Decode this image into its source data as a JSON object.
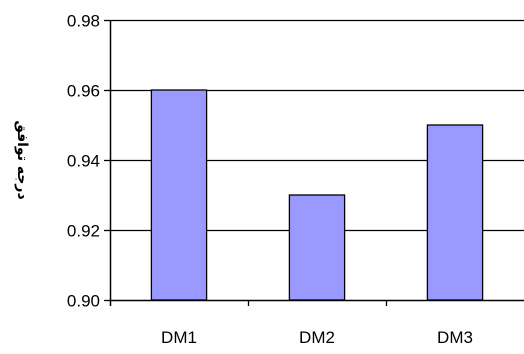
{
  "chart_data": {
    "type": "bar",
    "categories": [
      "DM1",
      "DM2",
      "DM3"
    ],
    "values": [
      0.96,
      0.93,
      0.95
    ],
    "title": "",
    "xlabel": "",
    "ylabel": "درجه توافق",
    "ylim": [
      0.9,
      0.98
    ],
    "yticks": [
      "0.90",
      "0.92",
      "0.94",
      "0.96",
      "0.98"
    ],
    "grid": "horizontal",
    "legend": "none",
    "colors": {
      "bar_fill": "#9999ff",
      "bar_stroke": "#000000",
      "axis": "#000000",
      "grid": "#000000",
      "background": "#ffffff"
    }
  }
}
